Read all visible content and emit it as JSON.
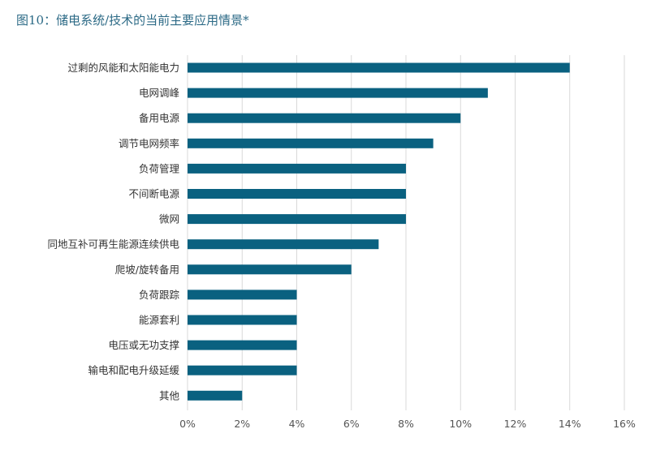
{
  "title": "图10：储电系统/技术的当前主要应用情景*",
  "chart_data": {
    "type": "bar",
    "orientation": "horizontal",
    "categories": [
      "过剩的风能和太阳能电力",
      "电网调峰",
      "备用电源",
      "调节电网频率",
      "负荷管理",
      "不间断电源",
      "微网",
      "同地互补可再生能源连续供电",
      "爬坡/旋转备用",
      "负荷跟踪",
      "能源套利",
      "电压或无功支撑",
      "输电和配电升级延缓",
      "其他"
    ],
    "values": [
      14,
      11,
      10,
      9,
      8,
      8,
      8,
      7,
      6,
      4,
      4,
      4,
      4,
      2
    ],
    "xlim": [
      0,
      16
    ],
    "xticks": [
      0,
      2,
      4,
      6,
      8,
      10,
      12,
      14,
      16
    ],
    "xtick_labels": [
      "0%",
      "2%",
      "4%",
      "6%",
      "8%",
      "10%",
      "12%",
      "14%",
      "16%"
    ],
    "grid": "vertical",
    "bar_color": "#0a6180",
    "grid_color": "#d9d9d9"
  }
}
